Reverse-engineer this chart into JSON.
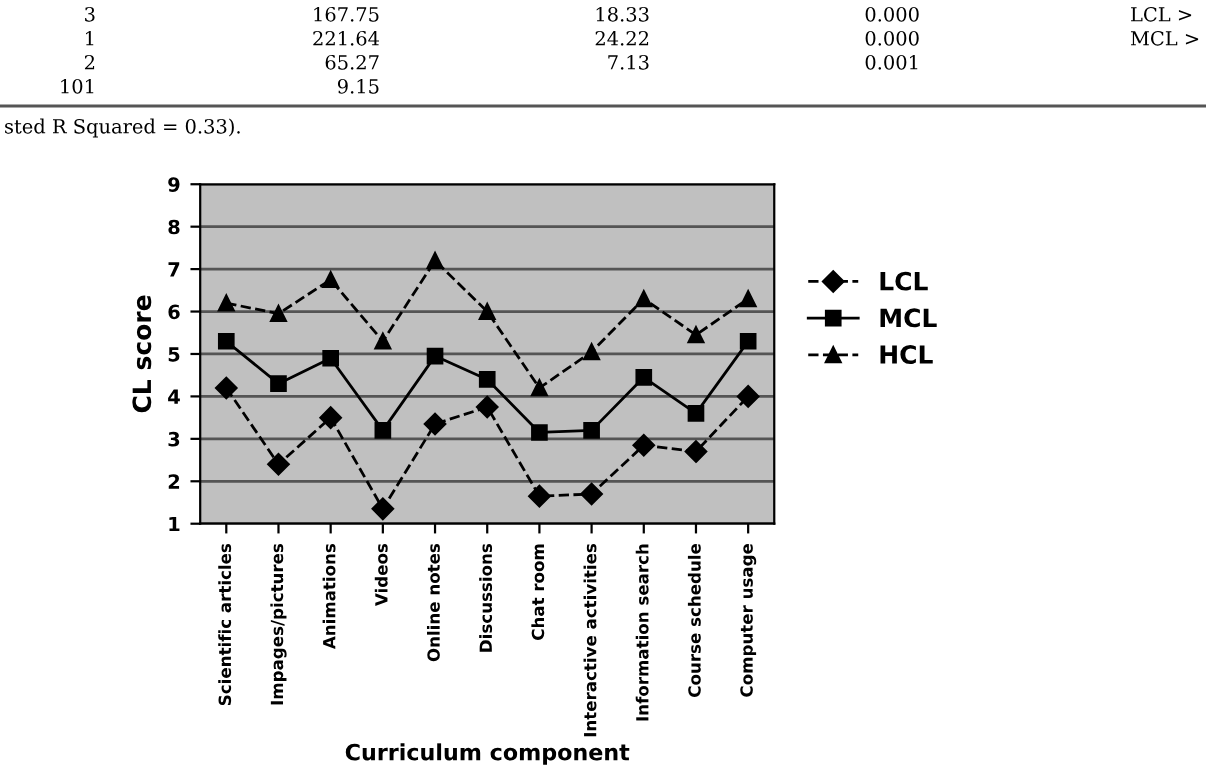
{
  "chart_data": {
    "type": "line",
    "xlabel": "Curriculum component",
    "ylabel": "CL score",
    "categories": [
      "Scientific articles",
      "Impages/pictures",
      "Animations",
      "Videos",
      "Online notes",
      "Discussions",
      "Chat room",
      "Interactive activities",
      "Information search",
      "Course schedule",
      "Computer usage"
    ],
    "series": [
      {
        "name": "LCL",
        "color": "#000000",
        "marker": "diamond",
        "line_style": "dashed",
        "values": [
          4.2,
          2.4,
          3.5,
          1.35,
          3.35,
          3.75,
          1.65,
          1.7,
          2.85,
          2.7,
          4.0
        ]
      },
      {
        "name": "MCL",
        "color": "#000000",
        "marker": "square",
        "line_style": "solid",
        "values": [
          5.3,
          4.3,
          4.9,
          3.2,
          4.95,
          4.4,
          3.15,
          3.2,
          4.45,
          3.6,
          5.3
        ]
      },
      {
        "name": "HCL",
        "color": "#000000",
        "marker": "triangle",
        "line_style": "dashed",
        "values": [
          6.2,
          5.95,
          6.75,
          5.3,
          7.2,
          6.0,
          4.2,
          5.05,
          6.3,
          5.45,
          6.3
        ]
      }
    ],
    "ylim": [
      1,
      9
    ],
    "yticks": [
      1,
      2,
      3,
      4,
      5,
      6,
      7,
      8,
      9
    ],
    "grid": "y",
    "legend": "right",
    "annotations": [
      "3",
      "167.75",
      "18.33",
      "0.000",
      "LCL >",
      "1",
      "221.64",
      "24.22",
      "0.000",
      "MCL >",
      "2",
      "65.27",
      "7.13",
      "0.001",
      "101",
      "9.15",
      "sted R Squared = 0.33)."
    ]
  }
}
